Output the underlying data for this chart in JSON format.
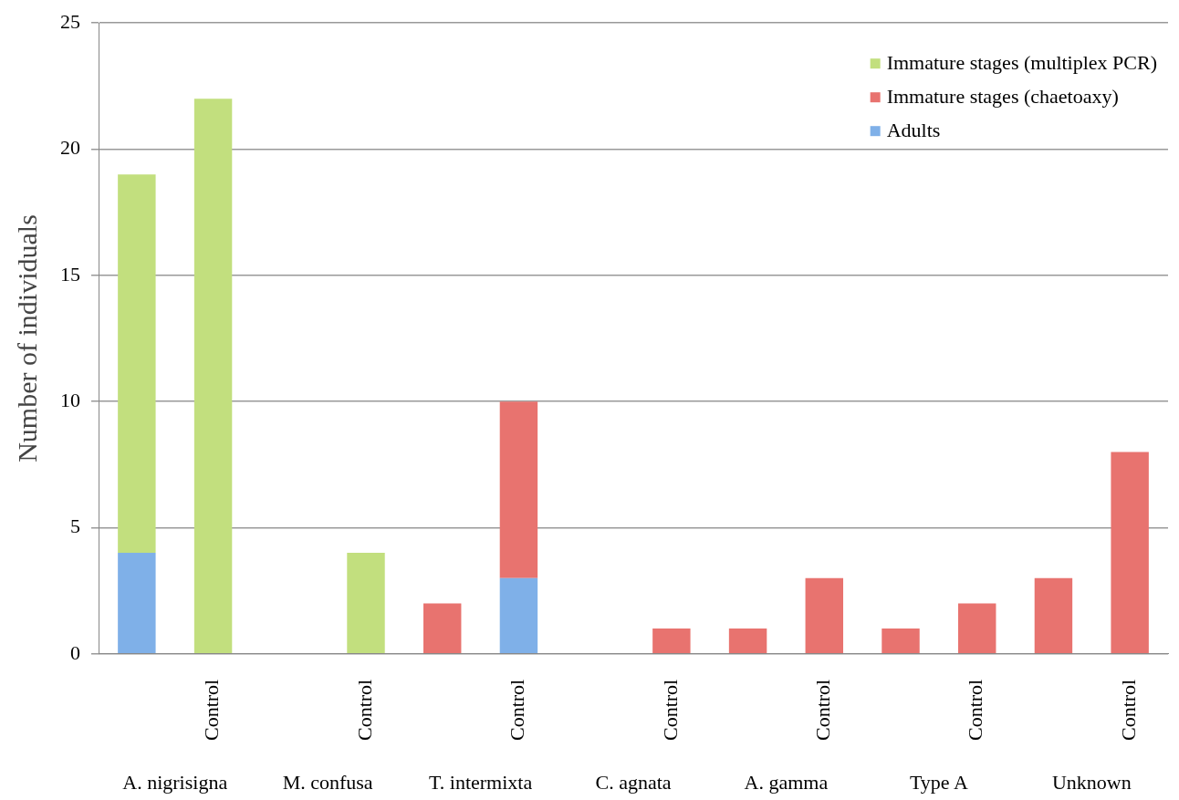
{
  "chart_data": {
    "type": "bar",
    "stacked": true,
    "ylabel": "Number of individuals",
    "categories": [
      null,
      "Control",
      null,
      "Control",
      null,
      "Control",
      null,
      "Control",
      null,
      "Control",
      null,
      "Control",
      null,
      "Control"
    ],
    "annotations": [
      "A. nigrisigna",
      "M. confusa",
      "T. intermixta",
      "C. agnata",
      "A. gamma",
      "Type A",
      "Unknown"
    ],
    "series": [
      {
        "name": "Adults",
        "color": "#7fb0e8",
        "values": [
          4,
          0,
          0,
          0,
          0,
          3,
          0,
          0,
          0,
          0,
          0,
          0,
          0,
          0
        ]
      },
      {
        "name": "Immature stages (chaetoaxy)",
        "color": "#e8736f",
        "values": [
          0,
          0,
          0,
          0,
          2,
          7,
          0,
          1,
          1,
          3,
          1,
          2,
          3,
          8
        ]
      },
      {
        "name": "Immature stages (multiplex PCR)",
        "color": "#c2df7e",
        "values": [
          15,
          22,
          0,
          4,
          0,
          0,
          0,
          0,
          0,
          0,
          0,
          0,
          0,
          0
        ]
      }
    ],
    "ylim": [
      0,
      25
    ],
    "yticks": [
      0,
      5,
      10,
      15,
      20,
      25
    ],
    "grid": "y",
    "legend": "top right"
  }
}
